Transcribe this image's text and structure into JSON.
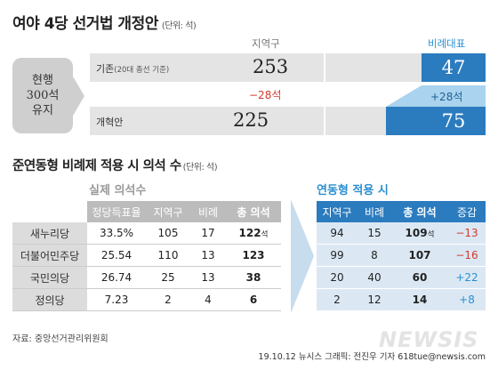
{
  "title": "여야 4당 선거법 개정안",
  "title_unit": "(단위: 석)",
  "top": {
    "col_district": "지역구",
    "col_pr": "비례대표",
    "side_label": [
      "현행",
      "300석",
      "유지"
    ],
    "row_current": {
      "label": "기존",
      "note": "(20대 총선 기준)",
      "district": "253",
      "pr": "47"
    },
    "change": {
      "district": "−28석",
      "pr": "+28석"
    },
    "row_reform": {
      "label": "개혁안",
      "district": "225",
      "pr": "75"
    }
  },
  "section2": {
    "title": "준연동형 비례제 적용 시 의석 수",
    "unit": "(단위: 석)"
  },
  "actual": {
    "title": "실제 의석수",
    "headers": [
      "정당득표율",
      "지역구",
      "비례",
      "총 의석"
    ],
    "rows": [
      {
        "party": "새누리당",
        "vote": "33.5%",
        "district": "105",
        "pr": "17",
        "total": "122",
        "suffix": "석"
      },
      {
        "party": "더불어민주당",
        "vote": "25.54",
        "district": "110",
        "pr": "13",
        "total": "123",
        "suffix": ""
      },
      {
        "party": "국민의당",
        "vote": "26.74",
        "district": "25",
        "pr": "13",
        "total": "38",
        "suffix": ""
      },
      {
        "party": "정의당",
        "vote": "7.23",
        "district": "2",
        "pr": "4",
        "total": "6",
        "suffix": ""
      }
    ]
  },
  "linked": {
    "title": "연동형 적용 시",
    "headers": [
      "지역구",
      "비례",
      "총 의석",
      "증감"
    ],
    "rows": [
      {
        "district": "94",
        "pr": "15",
        "total": "109",
        "suffix": "석",
        "change": "−13"
      },
      {
        "district": "99",
        "pr": "8",
        "total": "107",
        "suffix": "",
        "change": "−16"
      },
      {
        "district": "20",
        "pr": "40",
        "total": "60",
        "suffix": "",
        "change": "+22"
      },
      {
        "district": "2",
        "pr": "12",
        "total": "14",
        "suffix": "",
        "change": "+8"
      }
    ]
  },
  "source": "자료: 중앙선거관리위원회",
  "credit": "19.10.12  뉴시스 그래픽: 전진우 기자 618tue@newsis.com",
  "watermark": "NEWSIS",
  "colors": {
    "blue": "#2b7bbf",
    "red": "#d43a2c",
    "gray": "#bcbcbc"
  }
}
